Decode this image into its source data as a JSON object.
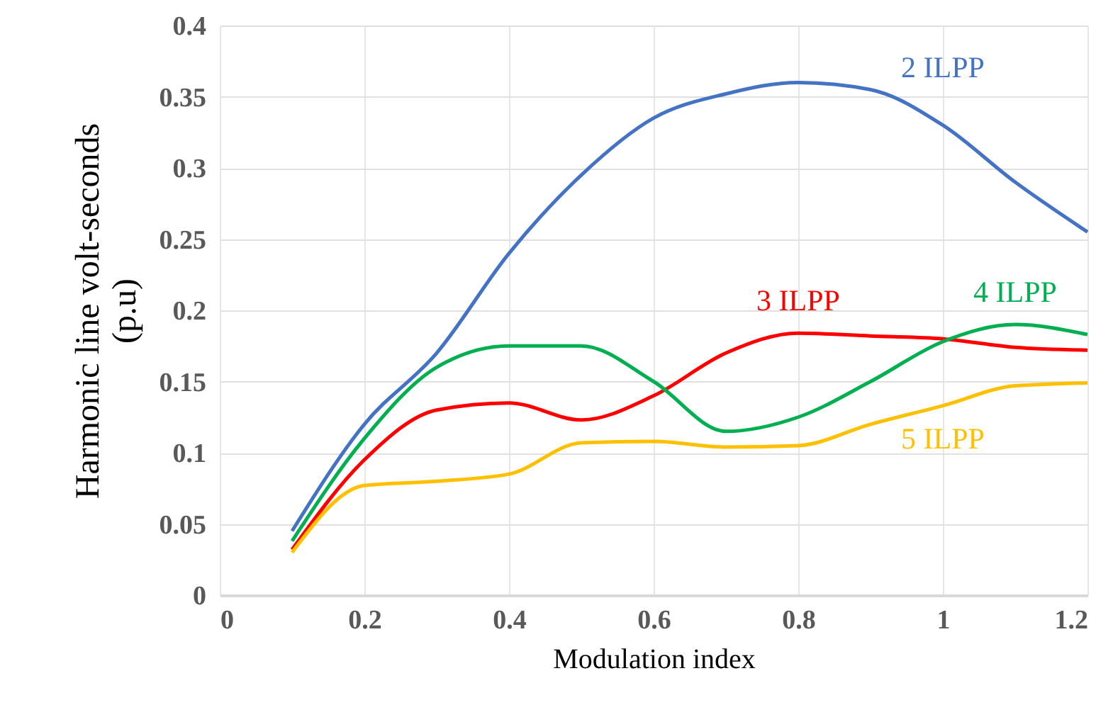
{
  "chart_data": {
    "type": "line",
    "xlabel": "Modulation index",
    "ylabel": "Harmonic line volt-seconds (p.u)",
    "x": [
      0.1,
      0.2,
      0.3,
      0.4,
      0.5,
      0.6,
      0.7,
      0.8,
      0.9,
      1.0,
      1.1,
      1.2
    ],
    "series": [
      {
        "name": "2 ILPP",
        "color": "#4472c4",
        "values": [
          0.045,
          0.12,
          0.17,
          0.24,
          0.295,
          0.335,
          0.352,
          0.36,
          0.355,
          0.33,
          0.29,
          0.255
        ]
      },
      {
        "name": "3 ILPP",
        "color": "#ff0000",
        "values": [
          0.032,
          0.095,
          0.13,
          0.135,
          0.123,
          0.14,
          0.17,
          0.184,
          0.182,
          0.18,
          0.174,
          0.172
        ]
      },
      {
        "name": "4 ILPP",
        "color": "#00b050",
        "values": [
          0.038,
          0.11,
          0.16,
          0.175,
          0.175,
          0.15,
          0.115,
          0.125,
          0.15,
          0.178,
          0.19,
          0.183
        ]
      },
      {
        "name": "5 ILPP",
        "color": "#ffc000",
        "values": [
          0.03,
          0.077,
          0.08,
          0.085,
          0.107,
          0.108,
          0.104,
          0.105,
          0.12,
          0.133,
          0.147,
          0.149
        ]
      }
    ],
    "xlim": [
      0,
      1.2
    ],
    "xticks": [
      0,
      0.2,
      0.4,
      0.6,
      0.8,
      1,
      1.2
    ],
    "ylim": [
      0,
      0.4
    ],
    "yticks": [
      0,
      0.05,
      0.1,
      0.15,
      0.2,
      0.25,
      0.3,
      0.35,
      0.4
    ],
    "grid": true,
    "marker": "none",
    "line_style": "solid"
  }
}
